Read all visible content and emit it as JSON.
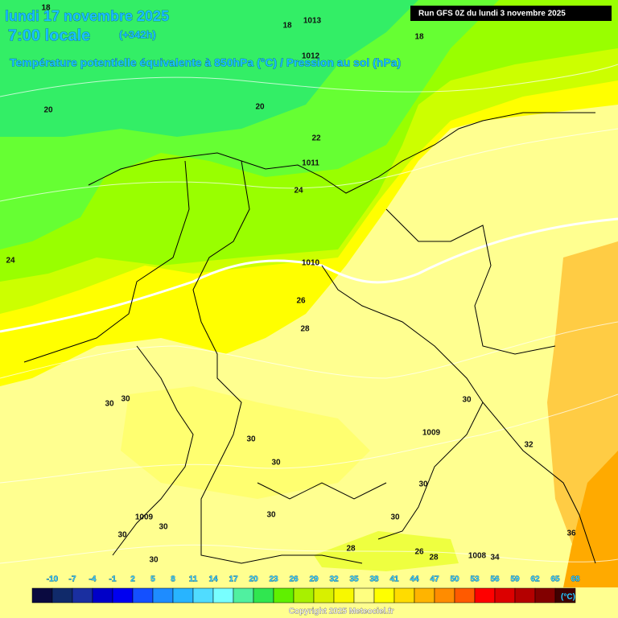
{
  "header": {
    "title": "lundi 17 novembre 2025",
    "time": "7:00 locale",
    "offset": "(+342h)",
    "subtitle": "Température potentielle équivalente à 850hPa (°C) / Pression au sol (hPa)",
    "run": "Run GFS 0Z du lundi 3 novembre 2025"
  },
  "map": {
    "labels": [
      18,
      1013,
      18,
      18,
      20,
      20,
      1012,
      22,
      1011,
      24,
      24,
      1010,
      26,
      28,
      30,
      30,
      30,
      30,
      30,
      1009,
      32,
      30,
      1009,
      30,
      30,
      30,
      30,
      36,
      28,
      26,
      28,
      1008,
      34,
      30
    ]
  },
  "legend": {
    "ticks": [
      -10,
      -7,
      -4,
      -1,
      2,
      5,
      8,
      11,
      14,
      17,
      20,
      23,
      26,
      29,
      32,
      35,
      38,
      41,
      44,
      47,
      50,
      53,
      56,
      59,
      62,
      65,
      68
    ],
    "colors": [
      "#0a0a40",
      "#102a6a",
      "#1a2fa0",
      "#0000c8",
      "#0000f0",
      "#1450ff",
      "#1e8cff",
      "#28b4ff",
      "#50dcff",
      "#78ffff",
      "#50f0a0",
      "#30e650",
      "#60f000",
      "#a8f000",
      "#d8f000",
      "#f8f800",
      "#ffff80",
      "#ffff00",
      "#ffdc00",
      "#ffb400",
      "#ff8c00",
      "#ff5a00",
      "#ff0000",
      "#dc0000",
      "#b40000",
      "#820000",
      "#400000"
    ],
    "unit": "(°C)",
    "copyright": "Copyright 2025 Meteociel.fr"
  }
}
